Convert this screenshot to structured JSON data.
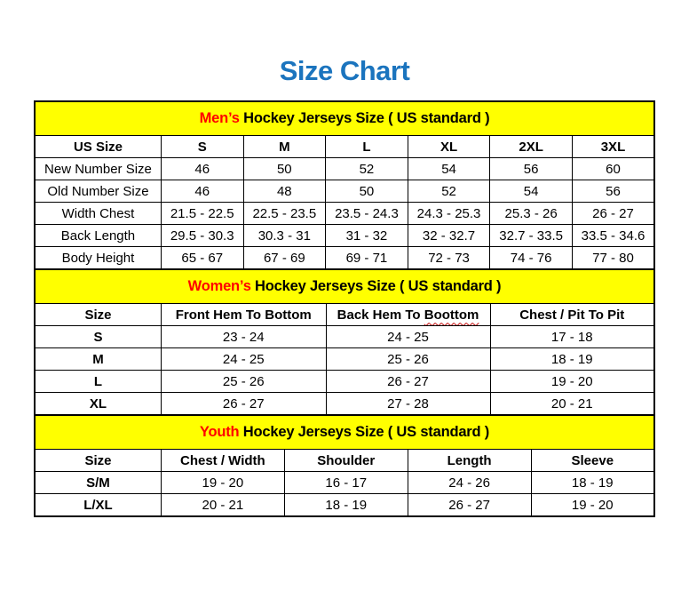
{
  "page": {
    "title": "Size Chart",
    "title_color": "#1B74BE",
    "banner_bg": "#FFFF00",
    "banner_highlight_color": "#FF0000",
    "squiggle_color": "#C00000"
  },
  "chart_data": [
    {
      "type": "table",
      "id": "mens",
      "banner_highlight": "Men’s",
      "banner_rest": " Hockey Jerseys Size ( US standard )",
      "col_widths": [
        "20.4%",
        "13.27%",
        "13.27%",
        "13.27%",
        "13.27%",
        "13.27%",
        "13.25%"
      ],
      "columns": [
        "US Size",
        "S",
        "M",
        "L",
        "XL",
        "2XL",
        "3XL"
      ],
      "bold_row_labels": false,
      "rows": [
        [
          "New Number Size",
          "46",
          "50",
          "52",
          "54",
          "56",
          "60"
        ],
        [
          "Old Number Size",
          "46",
          "48",
          "50",
          "52",
          "54",
          "56"
        ],
        [
          "Width Chest",
          "21.5 - 22.5",
          "22.5 - 23.5",
          "23.5 - 24.3",
          "24.3 - 25.3",
          "25.3 - 26",
          "26 - 27"
        ],
        [
          "Back Length",
          "29.5 - 30.3",
          "30.3 - 31",
          "31 - 32",
          "32 - 32.7",
          "32.7 - 33.5",
          "33.5 - 34.6"
        ],
        [
          "Body Height",
          "65 - 67",
          "67 - 69",
          "69 - 71",
          "72 - 73",
          "74 - 76",
          "77 - 80"
        ]
      ]
    },
    {
      "type": "table",
      "id": "womens",
      "banner_highlight": "Women’s",
      "banner_rest": " Hockey Jerseys Size ( US standard )",
      "col_widths": [
        "20.4%",
        "26.6%",
        "26.5%",
        "26.5%"
      ],
      "columns": [
        "Size",
        "Front Hem To Bottom",
        {
          "label": "Back Hem To ",
          "misspelled": "Boottom"
        },
        "Chest / Pit To Pit"
      ],
      "bold_row_labels": true,
      "rows": [
        [
          "S",
          "23 - 24",
          "24 - 25",
          "17 - 18"
        ],
        [
          "M",
          "24 - 25",
          "25 - 26",
          "18 - 19"
        ],
        [
          "L",
          "25 - 26",
          "26 - 27",
          "19 - 20"
        ],
        [
          "XL",
          "26 - 27",
          "27 - 28",
          "20 - 21"
        ]
      ]
    },
    {
      "type": "table",
      "id": "youth",
      "banner_highlight": "Youth",
      "banner_rest": " Hockey Jerseys Size ( US standard )",
      "col_widths": [
        "20.4%",
        "19.9%",
        "19.9%",
        "19.9%",
        "19.9%"
      ],
      "columns": [
        "Size",
        "Chest / Width",
        "Shoulder",
        "Length",
        "Sleeve"
      ],
      "bold_row_labels": true,
      "rows": [
        [
          "S/M",
          "19 - 20",
          "16 - 17",
          "24 - 26",
          "18 - 19"
        ],
        [
          "L/XL",
          "20 - 21",
          "18 - 19",
          "26 - 27",
          "19 - 20"
        ]
      ]
    }
  ]
}
